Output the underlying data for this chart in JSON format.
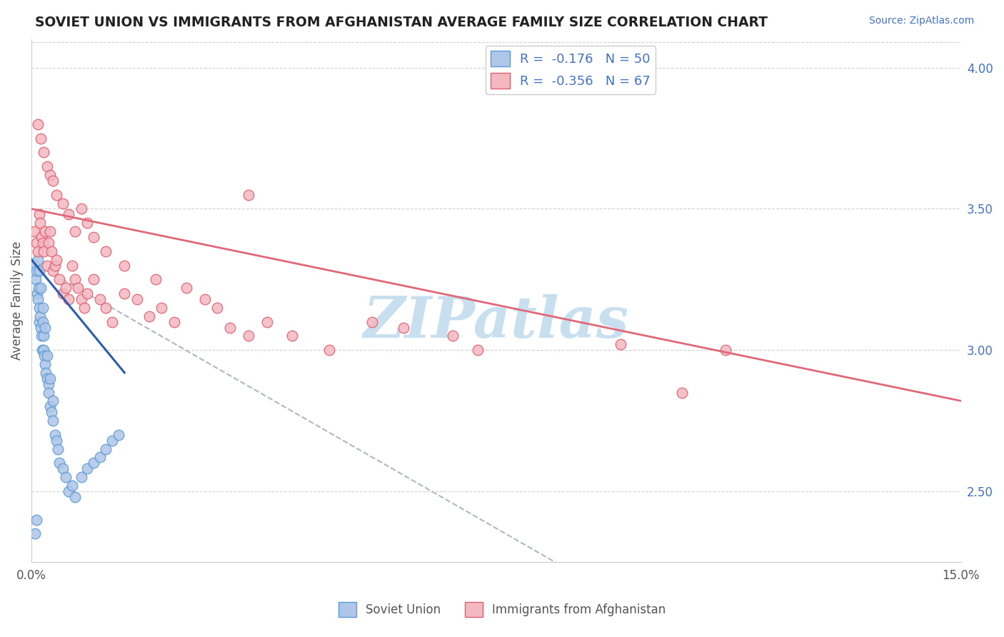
{
  "title": "SOVIET UNION VS IMMIGRANTS FROM AFGHANISTAN AVERAGE FAMILY SIZE CORRELATION CHART",
  "source": "Source: ZipAtlas.com",
  "ylabel": "Average Family Size",
  "xlim": [
    0.0,
    15.0
  ],
  "ylim": [
    2.25,
    4.1
  ],
  "yticks_right": [
    2.5,
    3.0,
    3.5,
    4.0
  ],
  "legend_labels_bottom": [
    "Soviet Union",
    "Immigrants from Afghanistan"
  ],
  "blue_scatter": {
    "x": [
      0.05,
      0.07,
      0.08,
      0.09,
      0.1,
      0.11,
      0.12,
      0.13,
      0.14,
      0.15,
      0.16,
      0.17,
      0.18,
      0.19,
      0.2,
      0.21,
      0.22,
      0.23,
      0.25,
      0.27,
      0.28,
      0.3,
      0.32,
      0.35,
      0.38,
      0.4,
      0.42,
      0.45,
      0.5,
      0.55,
      0.6,
      0.65,
      0.7,
      0.8,
      0.9,
      1.0,
      1.1,
      1.2,
      1.3,
      1.4,
      0.1,
      0.12,
      0.15,
      0.18,
      0.22,
      0.25,
      0.3,
      0.35,
      0.08,
      0.06
    ],
    "y": [
      3.3,
      3.25,
      3.28,
      3.2,
      3.18,
      3.22,
      3.15,
      3.1,
      3.12,
      3.08,
      3.05,
      3.0,
      3.1,
      3.05,
      3.0,
      2.98,
      2.95,
      2.92,
      2.9,
      2.88,
      2.85,
      2.8,
      2.78,
      2.75,
      2.7,
      2.68,
      2.65,
      2.6,
      2.58,
      2.55,
      2.5,
      2.52,
      2.48,
      2.55,
      2.58,
      2.6,
      2.62,
      2.65,
      2.68,
      2.7,
      3.32,
      3.28,
      3.22,
      3.15,
      3.08,
      2.98,
      2.9,
      2.82,
      2.4,
      2.35
    ],
    "color": "#aec6e8",
    "edgecolor": "#5b9bd5",
    "R": -0.176,
    "N": 50
  },
  "pink_scatter": {
    "x": [
      0.05,
      0.08,
      0.1,
      0.12,
      0.14,
      0.16,
      0.18,
      0.2,
      0.22,
      0.25,
      0.28,
      0.3,
      0.32,
      0.35,
      0.38,
      0.4,
      0.45,
      0.5,
      0.55,
      0.6,
      0.65,
      0.7,
      0.75,
      0.8,
      0.85,
      0.9,
      1.0,
      1.1,
      1.2,
      1.3,
      1.5,
      1.7,
      1.9,
      2.1,
      2.3,
      2.5,
      2.8,
      3.0,
      3.2,
      3.5,
      3.8,
      4.2,
      4.8,
      5.5,
      6.0,
      6.8,
      7.2,
      9.5,
      10.5,
      11.2,
      0.1,
      0.15,
      0.2,
      0.25,
      0.3,
      0.35,
      0.4,
      0.5,
      0.6,
      0.7,
      0.8,
      0.9,
      1.0,
      1.2,
      1.5,
      2.0,
      3.5
    ],
    "y": [
      3.42,
      3.38,
      3.35,
      3.48,
      3.45,
      3.4,
      3.38,
      3.35,
      3.42,
      3.3,
      3.38,
      3.42,
      3.35,
      3.28,
      3.3,
      3.32,
      3.25,
      3.2,
      3.22,
      3.18,
      3.3,
      3.25,
      3.22,
      3.18,
      3.15,
      3.2,
      3.25,
      3.18,
      3.15,
      3.1,
      3.2,
      3.18,
      3.12,
      3.15,
      3.1,
      3.22,
      3.18,
      3.15,
      3.08,
      3.05,
      3.1,
      3.05,
      3.0,
      3.1,
      3.08,
      3.05,
      3.0,
      3.02,
      2.85,
      3.0,
      3.8,
      3.75,
      3.7,
      3.65,
      3.62,
      3.6,
      3.55,
      3.52,
      3.48,
      3.42,
      3.5,
      3.45,
      3.4,
      3.35,
      3.3,
      3.25,
      3.55
    ],
    "color": "#f4b8c1",
    "edgecolor": "#e06070",
    "R": -0.356,
    "N": 67
  },
  "watermark_text": "ZIPatlas",
  "watermark_color": "#c8dff0",
  "blue_line_color": "#2b5faa",
  "pink_line_color": "#e06878",
  "dashed_line_color": "#b0b8c0",
  "grid_color": "#d0d0d0",
  "blue_line_x": [
    0.0,
    1.5
  ],
  "blue_line_y_start": 3.32,
  "blue_line_y_end": 2.92,
  "pink_line_x_start": 0.0,
  "pink_line_x_end": 15.0,
  "pink_line_y_start": 3.5,
  "pink_line_y_end": 2.82,
  "dash_line_x_start": 0.5,
  "dash_line_x_end": 9.0,
  "dash_line_y_start": 3.25,
  "dash_line_y_end": 2.18
}
